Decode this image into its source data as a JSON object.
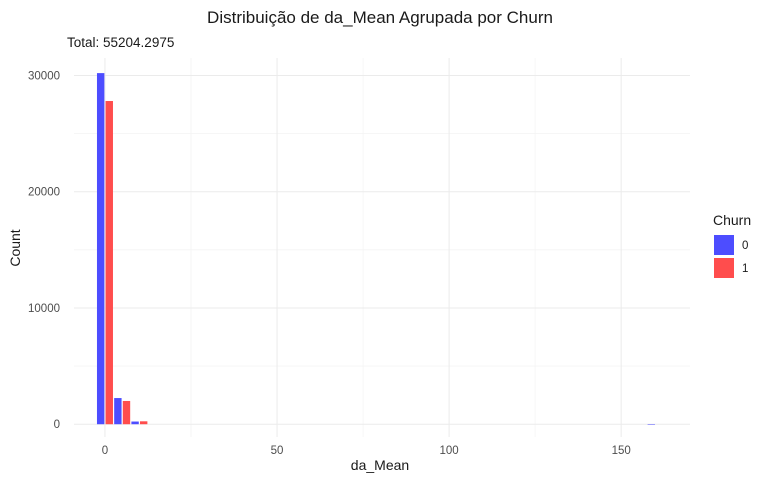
{
  "chart_data": {
    "type": "bar",
    "title": "Distribuição de da_Mean Agrupada por Churn",
    "subtitle": "Total: 55204.2975",
    "xlabel": "da_Mean",
    "ylabel": "Count",
    "xlim": [
      -9,
      170
    ],
    "ylim": [
      -1100,
      31500
    ],
    "x_ticks": [
      0,
      50,
      100,
      150
    ],
    "y_ticks": [
      0,
      10000,
      20000,
      30000
    ],
    "bin_width": 5,
    "grid": true,
    "legend": {
      "title": "Churn",
      "position": "right"
    },
    "series": [
      {
        "name": "0",
        "color": "#4d4dff",
        "bins": [
          {
            "start": -2.5,
            "end": 2.5,
            "count": 30200
          },
          {
            "start": 2.5,
            "end": 7.5,
            "count": 2250
          },
          {
            "start": 7.5,
            "end": 12.5,
            "count": 230
          },
          {
            "start": 157.5,
            "end": 162.5,
            "count": 10
          }
        ]
      },
      {
        "name": "1",
        "color": "#ff4d4d",
        "bins": [
          {
            "start": -2.5,
            "end": 2.5,
            "count": 27800
          },
          {
            "start": 2.5,
            "end": 7.5,
            "count": 2000
          },
          {
            "start": 7.5,
            "end": 12.5,
            "count": 250
          }
        ]
      }
    ]
  }
}
